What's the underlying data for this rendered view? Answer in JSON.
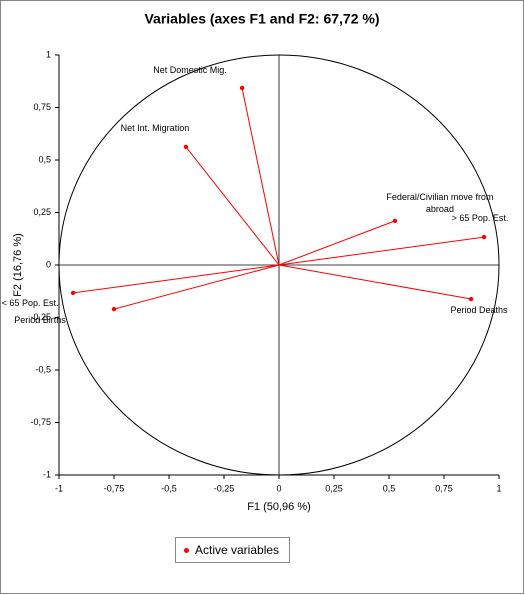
{
  "chart_data": {
    "type": "scatter",
    "title": "Variables (axes F1 and F2: 67,72 %)",
    "x_label": "F1 (50,96 %)",
    "y_label": "F2 (16,76 %)",
    "xlim": [
      -1,
      1
    ],
    "ylim": [
      -1,
      1
    ],
    "xticks": [
      -1,
      {
        "value": -0.75,
        "label": "-0,75"
      },
      {
        "value": -0.5,
        "label": "-0,5"
      },
      {
        "value": -0.25,
        "label": "-0,25"
      },
      0,
      {
        "value": 0.25,
        "label": "0,25"
      },
      {
        "value": 0.5,
        "label": "0,5"
      },
      {
        "value": 0.75,
        "label": "0,75"
      },
      1
    ],
    "yticks": [
      -1,
      {
        "value": -0.75,
        "label": "-0,75"
      },
      {
        "value": -0.5,
        "label": "-0,5"
      },
      {
        "value": -0.25,
        "label": "-0,25"
      },
      0,
      {
        "value": 0.25,
        "label": "0,25"
      },
      {
        "value": 0.5,
        "label": "0,5"
      },
      {
        "value": 0.75,
        "label": "0,75"
      },
      1
    ],
    "series": [
      {
        "name": "Active variables",
        "color": "#ff0000",
        "labels": [
          "Net Domestic Mig.",
          "Net Int. Migration",
          "Federal/Civilian move from abroad",
          "> 65 Pop. Est.",
          "Period Deaths",
          "< 65 Pop. Est.",
          "Period Births"
        ],
        "x": [
          -0.168,
          -0.423,
          0.527,
          0.932,
          0.873,
          -0.936,
          -0.75
        ],
        "values": [
          0.843,
          0.562,
          0.21,
          0.133,
          -0.162,
          -0.133,
          -0.21
        ]
      }
    ]
  }
}
